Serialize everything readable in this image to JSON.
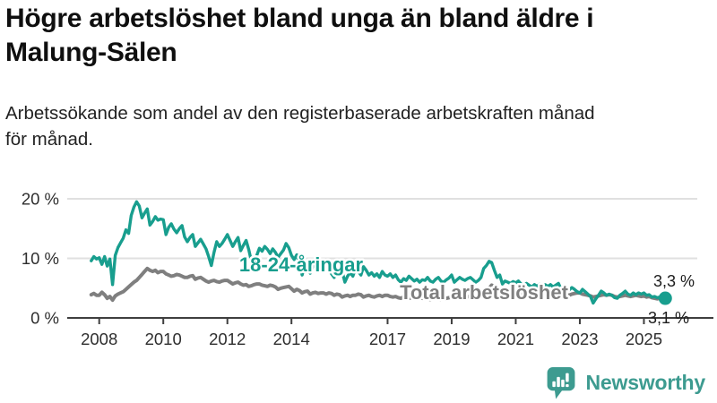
{
  "headline": "Högre arbetslöshet bland unga än bland äldre i\nMalung-Sälen",
  "subtitle": "Arbetssökande som andel av den registerbaserade arbetskraften månad\nför månad.",
  "footer": {
    "brand": "Newsworthy"
  },
  "colors": {
    "youth": "#189e8e",
    "total": "#7f7f7f",
    "grid": "#e0e0e0",
    "axis": "#3f3f3f",
    "tick_text": "#2e2e2e",
    "value_text": "#1c1c1c",
    "brand": "#3d9b90",
    "background": "#ffffff"
  },
  "chart_data": {
    "type": "line",
    "title": "Högre arbetslöshet bland unga än bland äldre i Malung-Sälen",
    "subtitle": "Arbetssökande som andel av den registerbaserade arbetskraften månad för månad.",
    "unit": "%",
    "frequency": "monthly",
    "x_start": {
      "year": 2007,
      "month": 10
    },
    "x_end": {
      "year": 2025,
      "month": 9
    },
    "xticks": [
      2008,
      2010,
      2012,
      2014,
      2017,
      2019,
      2021,
      2023,
      2025
    ],
    "yticks": [
      {
        "value": 0,
        "label": "0 %"
      },
      {
        "value": 10,
        "label": "10 %"
      },
      {
        "value": 20,
        "label": "20 %"
      }
    ],
    "ylim": [
      0,
      22
    ],
    "grid": true,
    "legend_position": "inline-labels",
    "series": [
      {
        "name": "Total arbetslöshet",
        "color": "#7f7f7f",
        "end_label": "3,1 %",
        "values": [
          3.9,
          4.1,
          3.8,
          3.8,
          4.3,
          3.9,
          3.3,
          3.6,
          3.0,
          3.7,
          4.0,
          4.2,
          4.4,
          4.8,
          5.2,
          5.6,
          6.0,
          6.3,
          6.8,
          7.3,
          7.8,
          8.3,
          8.0,
          7.8,
          8.0,
          7.6,
          7.8,
          7.8,
          7.4,
          7.2,
          7.0,
          7.1,
          7.3,
          7.2,
          7.0,
          6.8,
          6.8,
          7.0,
          7.1,
          6.5,
          6.7,
          6.8,
          6.5,
          6.2,
          6.0,
          6.2,
          6.3,
          6.1,
          6.0,
          6.2,
          6.3,
          6.3,
          6.0,
          5.7,
          5.9,
          6.0,
          5.7,
          5.5,
          5.6,
          5.3,
          5.4,
          5.6,
          5.7,
          5.7,
          5.5,
          5.4,
          5.3,
          5.5,
          5.4,
          5.2,
          4.8,
          5.0,
          5.1,
          5.2,
          5.3,
          4.9,
          4.5,
          4.8,
          4.6,
          4.2,
          4.4,
          4.5,
          4.0,
          4.2,
          4.3,
          4.1,
          4.2,
          4.2,
          4.0,
          4.2,
          4.1,
          3.8,
          4.0,
          3.9,
          3.5,
          3.7,
          3.8,
          3.6,
          3.8,
          3.8,
          4.0,
          3.9,
          3.5,
          3.7,
          3.8,
          3.6,
          3.5,
          3.7,
          3.8,
          3.6,
          3.8,
          3.8,
          3.6,
          3.5,
          3.6,
          3.4,
          3.3,
          3.5,
          3.4,
          3.3,
          3.4,
          3.5,
          3.6,
          3.4,
          3.3,
          3.4,
          3.2,
          3.1,
          3.3,
          3.4,
          3.2,
          3.1,
          3.2,
          3.3,
          3.4,
          3.5,
          3.3,
          3.4,
          3.5,
          3.3,
          3.4,
          3.6,
          3.5,
          3.6,
          3.7,
          3.8,
          4.0,
          4.2,
          4.4,
          5.0,
          5.5,
          5.3,
          5.0,
          4.8,
          4.6,
          4.5,
          4.4,
          4.3,
          4.4,
          4.5,
          4.3,
          4.2,
          4.0,
          3.9,
          3.8,
          3.9,
          3.8,
          3.7,
          3.8,
          3.9,
          4.0,
          4.2,
          4.0,
          3.9,
          3.8,
          4.0,
          4.2,
          4.0,
          3.9,
          3.8,
          4.0,
          4.1,
          4.2,
          4.2,
          4.0,
          3.9,
          3.8,
          3.7,
          3.5,
          3.6,
          3.7,
          3.8,
          3.9,
          3.8,
          3.9,
          3.8,
          3.6,
          3.5,
          3.6,
          3.7,
          3.8,
          3.7,
          3.6,
          3.7,
          3.8,
          3.7,
          3.6,
          3.7,
          3.5,
          3.6,
          3.4,
          3.3,
          3.2,
          3.3,
          3.2,
          3.1
        ]
      },
      {
        "name": "18-24-åringar",
        "color": "#189e8e",
        "end_label": "3,3 %",
        "end_dot": true,
        "values": [
          9.6,
          10.3,
          9.9,
          10.1,
          9.0,
          10.3,
          8.7,
          9.9,
          5.6,
          10.5,
          11.8,
          12.6,
          13.4,
          14.8,
          14.2,
          17.2,
          18.6,
          19.5,
          18.8,
          16.8,
          17.6,
          18.3,
          15.6,
          16.2,
          17.0,
          16.4,
          16.6,
          16.5,
          14.0,
          15.2,
          15.8,
          14.9,
          14.3,
          15.0,
          15.5,
          13.6,
          12.8,
          13.5,
          14.0,
          12.0,
          12.6,
          13.2,
          12.4,
          11.6,
          10.3,
          8.8,
          11.0,
          12.8,
          12.0,
          12.5,
          13.2,
          14.0,
          13.0,
          12.0,
          12.8,
          13.5,
          11.3,
          12.2,
          13.0,
          11.5,
          9.5,
          8.7,
          10.5,
          11.7,
          11.2,
          12.0,
          11.5,
          10.8,
          11.6,
          11.0,
          10.2,
          10.8,
          11.4,
          12.5,
          11.8,
          10.5,
          9.8,
          10.6,
          9.2,
          7.2,
          8.8,
          8.2,
          7.5,
          8.6,
          9.3,
          8.4,
          8.8,
          8.4,
          9.0,
          8.2,
          7.4,
          6.8,
          7.8,
          7.2,
          7.8,
          6.0,
          7.0,
          7.6,
          7.0,
          8.3,
          7.8,
          7.2,
          8.6,
          8.0,
          7.2,
          7.6,
          7.0,
          7.4,
          6.8,
          7.8,
          7.2,
          7.0,
          7.4,
          6.8,
          7.2,
          6.4,
          6.0,
          6.6,
          6.3,
          7.0,
          6.6,
          6.2,
          6.5,
          6.0,
          6.4,
          6.3,
          6.8,
          6.2,
          6.0,
          6.5,
          6.8,
          6.2,
          6.0,
          6.4,
          6.7,
          7.2,
          6.0,
          6.4,
          6.8,
          6.5,
          6.3,
          6.6,
          6.8,
          6.4,
          6.0,
          6.3,
          6.8,
          8.3,
          8.8,
          9.5,
          9.3,
          8.0,
          6.8,
          7.2,
          5.7,
          6.2,
          6.0,
          5.8,
          6.1,
          5.9,
          6.2,
          5.7,
          5.4,
          5.8,
          5.5,
          5.2,
          5.6,
          5.3,
          5.7,
          5.4,
          5.6,
          5.3,
          5.6,
          5.2,
          5.5,
          5.8,
          4.8,
          5.3,
          5.0,
          4.7,
          5.1,
          4.8,
          4.4,
          4.2,
          4.8,
          4.4,
          4.0,
          3.6,
          2.5,
          3.2,
          3.8,
          4.5,
          4.2,
          3.8,
          4.0,
          3.8,
          3.4,
          3.3,
          3.8,
          4.1,
          4.5,
          4.0,
          3.8,
          4.2,
          3.9,
          4.2,
          4.0,
          4.2,
          3.8,
          3.9,
          3.5,
          3.6,
          3.4,
          3.5,
          3.4,
          3.3
        ]
      }
    ]
  }
}
